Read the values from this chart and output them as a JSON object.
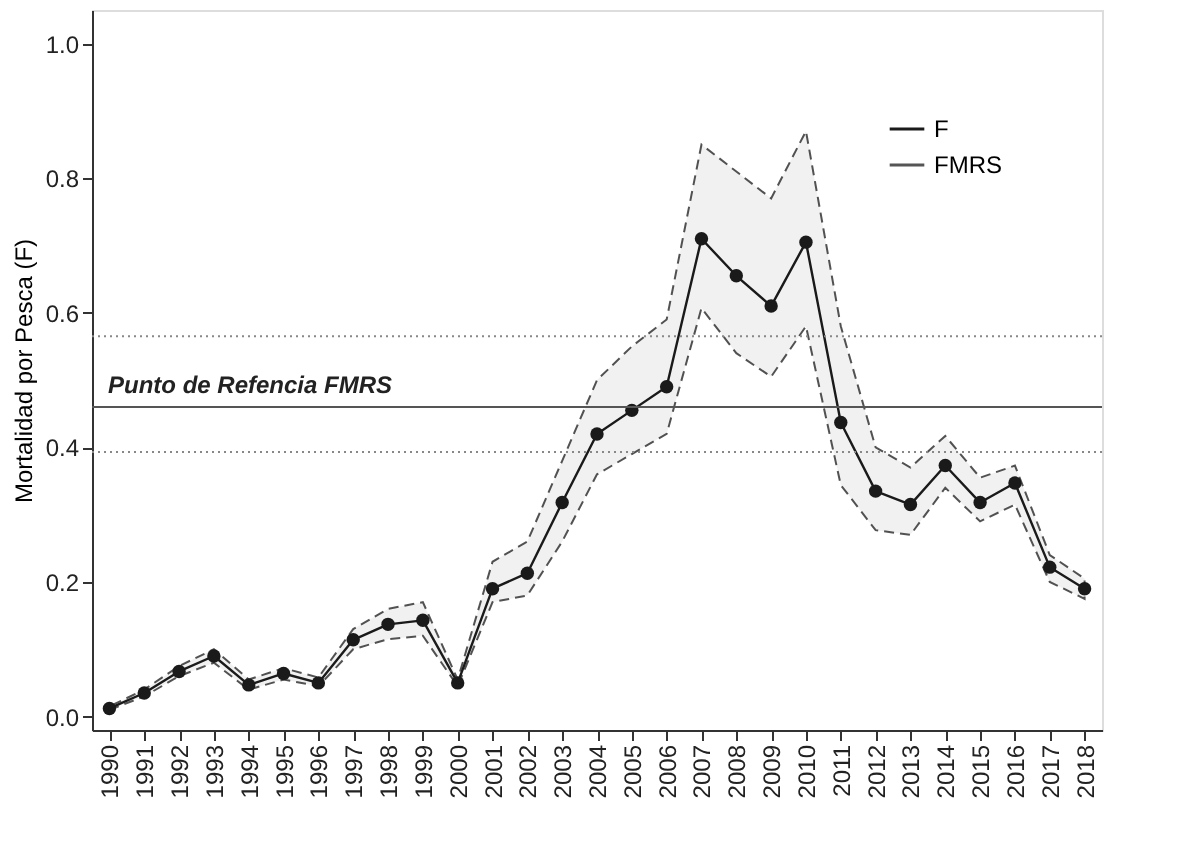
{
  "chart_data": {
    "type": "line",
    "ylabel": "Mortalidad por Pesca (F)",
    "categories": [
      "1990",
      "1991",
      "1992",
      "1993",
      "1994",
      "1995",
      "1996",
      "1997",
      "1998",
      "1999",
      "2000",
      "2001",
      "2002",
      "2003",
      "2004",
      "2005",
      "2006",
      "2007",
      "2008",
      "2009",
      "2010",
      "2011",
      "2012",
      "2013",
      "2014",
      "2015",
      "2016",
      "2017",
      "2018"
    ],
    "series": [
      {
        "name": "F",
        "color": "#1a1a1a",
        "marker": "circle",
        "line_style": "solid",
        "values": [
          0.012,
          0.035,
          0.067,
          0.09,
          0.047,
          0.064,
          0.05,
          0.114,
          0.137,
          0.143,
          0.05,
          0.19,
          0.213,
          0.318,
          0.42,
          0.455,
          0.49,
          0.71,
          0.655,
          0.61,
          0.705,
          0.437,
          0.335,
          0.315,
          0.373,
          0.318,
          0.347,
          0.222,
          0.19
        ],
        "upper": [
          0.015,
          0.04,
          0.075,
          0.1,
          0.055,
          0.072,
          0.058,
          0.13,
          0.16,
          0.17,
          0.055,
          0.23,
          0.26,
          0.38,
          0.5,
          0.55,
          0.59,
          0.85,
          0.81,
          0.77,
          0.87,
          0.58,
          0.4,
          0.37,
          0.417,
          0.355,
          0.373,
          0.24,
          0.205
        ],
        "lower": [
          0.01,
          0.03,
          0.06,
          0.08,
          0.04,
          0.055,
          0.045,
          0.1,
          0.115,
          0.12,
          0.045,
          0.17,
          0.18,
          0.26,
          0.36,
          0.39,
          0.42,
          0.607,
          0.54,
          0.505,
          0.58,
          0.344,
          0.277,
          0.27,
          0.34,
          0.29,
          0.315,
          0.2,
          0.175
        ]
      }
    ],
    "ref_lines": [
      {
        "axis": "y",
        "value": 0.46,
        "label": "FMRS",
        "color": "#555555",
        "line_style": "solid"
      },
      {
        "axis": "y",
        "value": 0.565,
        "color": "#888888",
        "line_style": "dotted"
      },
      {
        "axis": "y",
        "value": 0.393,
        "color": "#888888",
        "line_style": "dotted"
      }
    ],
    "annotations": [
      "Punto de Refencia FMRS"
    ],
    "ylim": [
      -0.02,
      1.05
    ],
    "yticks": [
      {
        "value": 0,
        "label": "0.0"
      },
      {
        "value": 0.2,
        "label": "0.2"
      },
      {
        "value": 0.4,
        "label": "0.4"
      },
      {
        "value": 0.6,
        "label": "0.6"
      },
      {
        "value": 0.8,
        "label": "0.8"
      },
      {
        "value": 1,
        "label": "1.0"
      }
    ],
    "grid": false,
    "legend": "top right"
  }
}
